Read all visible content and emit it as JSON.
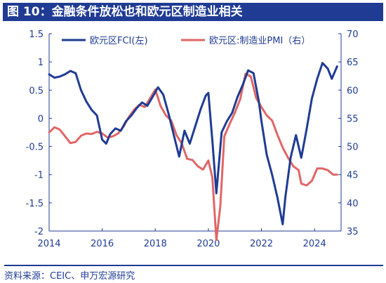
{
  "title": "图 10：金融条件放松也和欧元区制造业相关",
  "source": "资料来源：CEIC、申万宏源研究",
  "chart_data": {
    "type": "line",
    "x_ticks": [
      "2014",
      "2016",
      "2018",
      "2020",
      "2022",
      "2024"
    ],
    "y_left_ticks": [
      "1.5",
      "1",
      "0.5",
      "0",
      "-0.5",
      "-1",
      "-1.5",
      "-2"
    ],
    "y_right_ticks": [
      "70",
      "65",
      "60",
      "55",
      "50",
      "45",
      "40",
      "35"
    ],
    "ylim_left": [
      -2,
      1.5
    ],
    "ylim_right": [
      35,
      70
    ],
    "xlim": [
      2014.0,
      2025.0
    ],
    "grid": false,
    "legend_position": "top",
    "series": [
      {
        "name": "欧元区FCI(左)",
        "axis": "left",
        "color": "#1f3b93",
        "points": [
          [
            2014.0,
            0.78
          ],
          [
            2014.2,
            0.72
          ],
          [
            2014.4,
            0.74
          ],
          [
            2014.6,
            0.78
          ],
          [
            2014.8,
            0.84
          ],
          [
            2015.0,
            0.8
          ],
          [
            2015.2,
            0.5
          ],
          [
            2015.4,
            0.3
          ],
          [
            2015.6,
            0.15
          ],
          [
            2015.8,
            0.05
          ],
          [
            2016.0,
            -0.38
          ],
          [
            2016.15,
            -0.45
          ],
          [
            2016.3,
            -0.28
          ],
          [
            2016.5,
            -0.18
          ],
          [
            2016.7,
            -0.22
          ],
          [
            2016.9,
            -0.05
          ],
          [
            2017.1,
            0.05
          ],
          [
            2017.3,
            0.18
          ],
          [
            2017.5,
            0.28
          ],
          [
            2017.7,
            0.22
          ],
          [
            2017.9,
            0.38
          ],
          [
            2018.1,
            0.55
          ],
          [
            2018.3,
            0.42
          ],
          [
            2018.5,
            0.08
          ],
          [
            2018.7,
            -0.3
          ],
          [
            2018.9,
            -0.68
          ],
          [
            2019.1,
            -0.22
          ],
          [
            2019.3,
            -0.45
          ],
          [
            2019.5,
            -0.15
          ],
          [
            2019.7,
            0.15
          ],
          [
            2019.9,
            0.4
          ],
          [
            2020.0,
            0.45
          ],
          [
            2020.15,
            -0.4
          ],
          [
            2020.3,
            -1.33
          ],
          [
            2020.5,
            -0.25
          ],
          [
            2020.7,
            -0.05
          ],
          [
            2020.9,
            0.1
          ],
          [
            2021.1,
            0.38
          ],
          [
            2021.3,
            0.6
          ],
          [
            2021.5,
            0.85
          ],
          [
            2021.7,
            0.8
          ],
          [
            2021.9,
            0.3
          ],
          [
            2022.0,
            -0.05
          ],
          [
            2022.2,
            -0.65
          ],
          [
            2022.4,
            -1.0
          ],
          [
            2022.6,
            -1.4
          ],
          [
            2022.8,
            -1.88
          ],
          [
            2022.9,
            -1.4
          ],
          [
            2023.1,
            -0.7
          ],
          [
            2023.3,
            -0.3
          ],
          [
            2023.5,
            -0.7
          ],
          [
            2023.7,
            -0.2
          ],
          [
            2023.9,
            0.35
          ],
          [
            2024.1,
            0.7
          ],
          [
            2024.3,
            0.98
          ],
          [
            2024.5,
            0.88
          ],
          [
            2024.65,
            0.7
          ],
          [
            2024.85,
            0.92
          ]
        ]
      },
      {
        "name": "欧元区:制造业PMI（右）",
        "axis": "right",
        "color": "#e06666",
        "points": [
          [
            2014.0,
            52.5
          ],
          [
            2014.2,
            53.4
          ],
          [
            2014.4,
            53.0
          ],
          [
            2014.6,
            51.8
          ],
          [
            2014.8,
            50.6
          ],
          [
            2015.0,
            50.8
          ],
          [
            2015.2,
            51.9
          ],
          [
            2015.4,
            52.3
          ],
          [
            2015.6,
            52.2
          ],
          [
            2015.8,
            52.6
          ],
          [
            2016.0,
            52.3
          ],
          [
            2016.2,
            51.6
          ],
          [
            2016.4,
            51.8
          ],
          [
            2016.6,
            52.3
          ],
          [
            2016.8,
            53.5
          ],
          [
            2017.0,
            55.2
          ],
          [
            2017.2,
            56.5
          ],
          [
            2017.4,
            57.4
          ],
          [
            2017.6,
            57.0
          ],
          [
            2017.8,
            58.5
          ],
          [
            2018.0,
            60.1
          ],
          [
            2018.2,
            57.2
          ],
          [
            2018.4,
            55.5
          ],
          [
            2018.6,
            54.6
          ],
          [
            2018.8,
            52.0
          ],
          [
            2019.0,
            50.5
          ],
          [
            2019.2,
            47.8
          ],
          [
            2019.4,
            47.6
          ],
          [
            2019.6,
            46.5
          ],
          [
            2019.8,
            45.9
          ],
          [
            2020.0,
            47.5
          ],
          [
            2020.15,
            44.5
          ],
          [
            2020.3,
            33.4
          ],
          [
            2020.45,
            39.4
          ],
          [
            2020.6,
            51.8
          ],
          [
            2020.8,
            54.0
          ],
          [
            2021.0,
            56.0
          ],
          [
            2021.2,
            58.4
          ],
          [
            2021.4,
            62.9
          ],
          [
            2021.6,
            62.4
          ],
          [
            2021.8,
            58.6
          ],
          [
            2022.0,
            57.0
          ],
          [
            2022.2,
            55.5
          ],
          [
            2022.4,
            54.6
          ],
          [
            2022.6,
            52.1
          ],
          [
            2022.8,
            49.8
          ],
          [
            2023.0,
            48.0
          ],
          [
            2023.2,
            46.5
          ],
          [
            2023.4,
            45.8
          ],
          [
            2023.5,
            43.4
          ],
          [
            2023.7,
            43.1
          ],
          [
            2023.9,
            43.9
          ],
          [
            2024.1,
            46.1
          ],
          [
            2024.3,
            46.1
          ],
          [
            2024.5,
            45.8
          ],
          [
            2024.7,
            45.0
          ],
          [
            2024.85,
            45.0
          ]
        ]
      }
    ]
  }
}
